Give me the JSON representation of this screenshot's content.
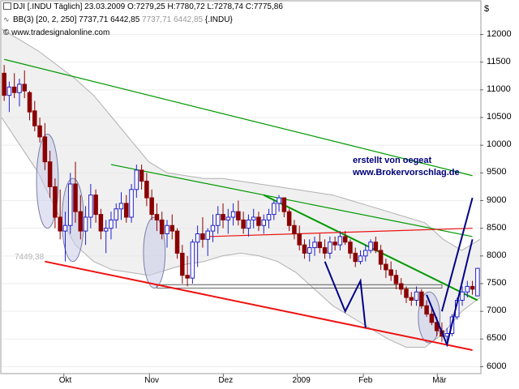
{
  "header": {
    "line1": {
      "symbol": "DJI [.INDU  Täglich]",
      "date": "23.03.2009",
      "open": "O:7279,25",
      "high": "H:7780,72",
      "low": "L:7278,74",
      "close": "C:7775,86"
    },
    "line2": {
      "indicator": "BB(3) [20, 2, 250]",
      "val_a": "7737,71",
      "val_b": "6442,85",
      "val_c": "7737,71 6442,85",
      "symbol": "{.INDU}"
    },
    "line3": {
      "copyright": "© www.tradesignalonline.com"
    }
  },
  "currency_label": "$",
  "annotation": {
    "line1": "erstellt von oegeat",
    "line2": "www.Brokervorschlag.de"
  },
  "level_label": "7449,38",
  "colors": {
    "up": "#2020cc",
    "down": "#8b0000",
    "green": "#009900",
    "red": "#ee1111",
    "blue_path": "#000088",
    "band_fill": "#e4e4e4",
    "band_line": "#b0b0b0"
  },
  "chart_data": {
    "type": "candlestick",
    "ylim": [
      6000,
      12300
    ],
    "y_ticks": [
      6000,
      6500,
      7000,
      7500,
      8000,
      8500,
      9000,
      9500,
      10000,
      10500,
      11000,
      11500,
      12000
    ],
    "x_labels": [
      "Okt",
      "Nov",
      "Dez",
      "2009",
      "Feb",
      "Mär"
    ],
    "candles": [
      {
        "o": 11300,
        "h": 11450,
        "l": 10800,
        "c": 10900
      },
      {
        "o": 10900,
        "h": 11150,
        "l": 10600,
        "c": 11050
      },
      {
        "o": 11050,
        "h": 11300,
        "l": 10850,
        "c": 10950
      },
      {
        "o": 10950,
        "h": 11200,
        "l": 10700,
        "c": 11100
      },
      {
        "o": 11100,
        "h": 11350,
        "l": 10850,
        "c": 10980
      },
      {
        "o": 10950,
        "h": 10980,
        "l": 10450,
        "c": 10600
      },
      {
        "o": 10620,
        "h": 10800,
        "l": 10250,
        "c": 10350
      },
      {
        "o": 10350,
        "h": 10500,
        "l": 10050,
        "c": 10150
      },
      {
        "o": 10150,
        "h": 10400,
        "l": 9550,
        "c": 9700
      },
      {
        "o": 9700,
        "h": 9900,
        "l": 9050,
        "c": 9250
      },
      {
        "o": 9250,
        "h": 9400,
        "l": 8500,
        "c": 8700
      },
      {
        "o": 8700,
        "h": 9200,
        "l": 8300,
        "c": 8450
      },
      {
        "o": 8450,
        "h": 8800,
        "l": 7900,
        "c": 8550
      },
      {
        "o": 8550,
        "h": 9500,
        "l": 8400,
        "c": 9300
      },
      {
        "o": 9300,
        "h": 9700,
        "l": 8600,
        "c": 8800
      },
      {
        "o": 8800,
        "h": 9100,
        "l": 8300,
        "c": 8450
      },
      {
        "o": 8450,
        "h": 8900,
        "l": 8200,
        "c": 8700
      },
      {
        "o": 8700,
        "h": 9300,
        "l": 8500,
        "c": 9100
      },
      {
        "o": 9100,
        "h": 9200,
        "l": 8600,
        "c": 8750
      },
      {
        "o": 8750,
        "h": 8850,
        "l": 8300,
        "c": 8450
      },
      {
        "o": 8450,
        "h": 8650,
        "l": 8050,
        "c": 8500
      },
      {
        "o": 8500,
        "h": 8800,
        "l": 8300,
        "c": 8650
      },
      {
        "o": 8650,
        "h": 8950,
        "l": 8500,
        "c": 8850
      },
      {
        "o": 8850,
        "h": 9150,
        "l": 8650,
        "c": 8950
      },
      {
        "o": 8950,
        "h": 9100,
        "l": 8600,
        "c": 8700
      },
      {
        "o": 8700,
        "h": 9300,
        "l": 8600,
        "c": 9200
      },
      {
        "o": 9200,
        "h": 9650,
        "l": 9050,
        "c": 9550
      },
      {
        "o": 9550,
        "h": 9650,
        "l": 9200,
        "c": 9350
      },
      {
        "o": 9350,
        "h": 9500,
        "l": 8900,
        "c": 9050
      },
      {
        "o": 9050,
        "h": 9200,
        "l": 8650,
        "c": 8750
      },
      {
        "o": 8750,
        "h": 8950,
        "l": 8450,
        "c": 8650
      },
      {
        "o": 8650,
        "h": 8800,
        "l": 8300,
        "c": 8400
      },
      {
        "o": 8400,
        "h": 8650,
        "l": 8150,
        "c": 8550
      },
      {
        "o": 8550,
        "h": 8750,
        "l": 8300,
        "c": 8450
      },
      {
        "o": 8450,
        "h": 8500,
        "l": 7950,
        "c": 8050
      },
      {
        "o": 8050,
        "h": 8200,
        "l": 7500,
        "c": 7650
      },
      {
        "o": 7650,
        "h": 8000,
        "l": 7450,
        "c": 7600
      },
      {
        "o": 7600,
        "h": 8300,
        "l": 7500,
        "c": 8250
      },
      {
        "o": 8250,
        "h": 8550,
        "l": 7800,
        "c": 8400
      },
      {
        "o": 8400,
        "h": 8700,
        "l": 8150,
        "c": 8300
      },
      {
        "o": 8300,
        "h": 8500,
        "l": 8000,
        "c": 8450
      },
      {
        "o": 8450,
        "h": 8750,
        "l": 8250,
        "c": 8550
      },
      {
        "o": 8550,
        "h": 8900,
        "l": 8400,
        "c": 8750
      },
      {
        "o": 8750,
        "h": 8950,
        "l": 8500,
        "c": 8650
      },
      {
        "o": 8650,
        "h": 8850,
        "l": 8400,
        "c": 8700
      },
      {
        "o": 8700,
        "h": 8950,
        "l": 8550,
        "c": 8800
      },
      {
        "o": 8800,
        "h": 9000,
        "l": 8550,
        "c": 8650
      },
      {
        "o": 8650,
        "h": 8800,
        "l": 8400,
        "c": 8500
      },
      {
        "o": 8500,
        "h": 8750,
        "l": 8350,
        "c": 8650
      },
      {
        "o": 8650,
        "h": 8850,
        "l": 8500,
        "c": 8700
      },
      {
        "o": 8700,
        "h": 8800,
        "l": 8450,
        "c": 8550
      },
      {
        "o": 8550,
        "h": 8750,
        "l": 8400,
        "c": 8650
      },
      {
        "o": 8650,
        "h": 8850,
        "l": 8500,
        "c": 8750
      },
      {
        "o": 8750,
        "h": 9000,
        "l": 8650,
        "c": 8950
      },
      {
        "o": 8950,
        "h": 9100,
        "l": 8800,
        "c": 9050
      },
      {
        "o": 9050,
        "h": 9050,
        "l": 8700,
        "c": 8800
      },
      {
        "o": 8800,
        "h": 8850,
        "l": 8450,
        "c": 8550
      },
      {
        "o": 8550,
        "h": 8650,
        "l": 8300,
        "c": 8400
      },
      {
        "o": 8400,
        "h": 8550,
        "l": 8100,
        "c": 8200
      },
      {
        "o": 8200,
        "h": 8300,
        "l": 7950,
        "c": 8050
      },
      {
        "o": 8050,
        "h": 8300,
        "l": 7900,
        "c": 8150
      },
      {
        "o": 8150,
        "h": 8350,
        "l": 8000,
        "c": 8250
      },
      {
        "o": 8250,
        "h": 8400,
        "l": 8050,
        "c": 8150
      },
      {
        "o": 8150,
        "h": 8300,
        "l": 7950,
        "c": 8050
      },
      {
        "o": 8050,
        "h": 8350,
        "l": 7950,
        "c": 8250
      },
      {
        "o": 8250,
        "h": 8350,
        "l": 8100,
        "c": 8200
      },
      {
        "o": 8200,
        "h": 8450,
        "l": 8100,
        "c": 8350
      },
      {
        "o": 8350,
        "h": 8450,
        "l": 8200,
        "c": 8250
      },
      {
        "o": 8250,
        "h": 8300,
        "l": 7950,
        "c": 8050
      },
      {
        "o": 8050,
        "h": 8150,
        "l": 7800,
        "c": 7900
      },
      {
        "o": 7900,
        "h": 8100,
        "l": 7850,
        "c": 8000
      },
      {
        "o": 8000,
        "h": 8200,
        "l": 7900,
        "c": 8100
      },
      {
        "o": 8100,
        "h": 8300,
        "l": 8050,
        "c": 8250
      },
      {
        "o": 8250,
        "h": 8350,
        "l": 8050,
        "c": 8100
      },
      {
        "o": 8100,
        "h": 8200,
        "l": 7750,
        "c": 7850
      },
      {
        "o": 7850,
        "h": 7950,
        "l": 7600,
        "c": 7750
      },
      {
        "o": 7750,
        "h": 7900,
        "l": 7550,
        "c": 7650
      },
      {
        "o": 7650,
        "h": 7750,
        "l": 7400,
        "c": 7500
      },
      {
        "o": 7500,
        "h": 7600,
        "l": 7300,
        "c": 7400
      },
      {
        "o": 7400,
        "h": 7450,
        "l": 7150,
        "c": 7250
      },
      {
        "o": 7250,
        "h": 7350,
        "l": 7100,
        "c": 7200
      },
      {
        "o": 7200,
        "h": 7450,
        "l": 7100,
        "c": 7350
      },
      {
        "o": 7350,
        "h": 7400,
        "l": 7050,
        "c": 7100
      },
      {
        "o": 7100,
        "h": 7200,
        "l": 6900,
        "c": 6950
      },
      {
        "o": 6950,
        "h": 7050,
        "l": 6750,
        "c": 6800
      },
      {
        "o": 6800,
        "h": 6900,
        "l": 6550,
        "c": 6650
      },
      {
        "o": 6650,
        "h": 6800,
        "l": 6450,
        "c": 6550
      },
      {
        "o": 6550,
        "h": 6700,
        "l": 6470,
        "c": 6600
      },
      {
        "o": 6600,
        "h": 6950,
        "l": 6550,
        "c": 6900
      },
      {
        "o": 6900,
        "h": 7250,
        "l": 6850,
        "c": 7200
      },
      {
        "o": 7200,
        "h": 7450,
        "l": 7100,
        "c": 7350
      },
      {
        "o": 7350,
        "h": 7550,
        "l": 7250,
        "c": 7450
      },
      {
        "o": 7450,
        "h": 7550,
        "l": 7300,
        "c": 7400
      },
      {
        "o": 7279,
        "h": 7781,
        "l": 7279,
        "c": 7776
      }
    ],
    "bollinger_upper": [
      12100,
      11900,
      11700,
      11450,
      11200,
      10900,
      10500,
      10100,
      9700,
      9500,
      9450,
      9400,
      9400,
      9350,
      9300,
      9250,
      9200,
      9150,
      9100,
      9000,
      8900,
      8800,
      8700,
      8600,
      8300,
      8100,
      8300
    ],
    "bollinger_lower": [
      10500,
      10000,
      9500,
      8800,
      8200,
      7900,
      7750,
      7700,
      7650,
      7750,
      7850,
      7900,
      8000,
      8050,
      8000,
      7900,
      7700,
      7400,
      7100,
      6900,
      6700,
      6500,
      6350,
      6350,
      6600,
      7000,
      7250
    ],
    "overlays": {
      "green_upper_channel_line": {
        "from": [
          0,
          11550
        ],
        "to": [
          92,
          9450
        ]
      },
      "green_resistance_line": {
        "from": [
          21,
          9650
        ],
        "to": [
          92,
          8350
        ]
      },
      "green_down_trendline": {
        "from": [
          51,
          9100
        ],
        "to": [
          93,
          7200
        ]
      },
      "red_support_line": {
        "from": [
          8,
          7900
        ],
        "to": [
          92,
          6300
        ]
      },
      "red_horizontal_line": {
        "from": [
          40,
          8350
        ],
        "to": [
          92,
          8500
        ]
      },
      "support_box": {
        "from": [
          30,
          7420
        ],
        "to": [
          86,
          7480
        ]
      },
      "blue_projection_1": [
        [
          63,
          7900
        ],
        [
          67,
          7000
        ],
        [
          70,
          7550
        ],
        [
          71,
          6700
        ]
      ],
      "blue_projection_2": [
        [
          83,
          7300
        ],
        [
          87,
          6400
        ],
        [
          92,
          8300
        ]
      ],
      "blue_projection_3": [
        [
          86,
          7000
        ],
        [
          92,
          9050
        ]
      ]
    }
  }
}
